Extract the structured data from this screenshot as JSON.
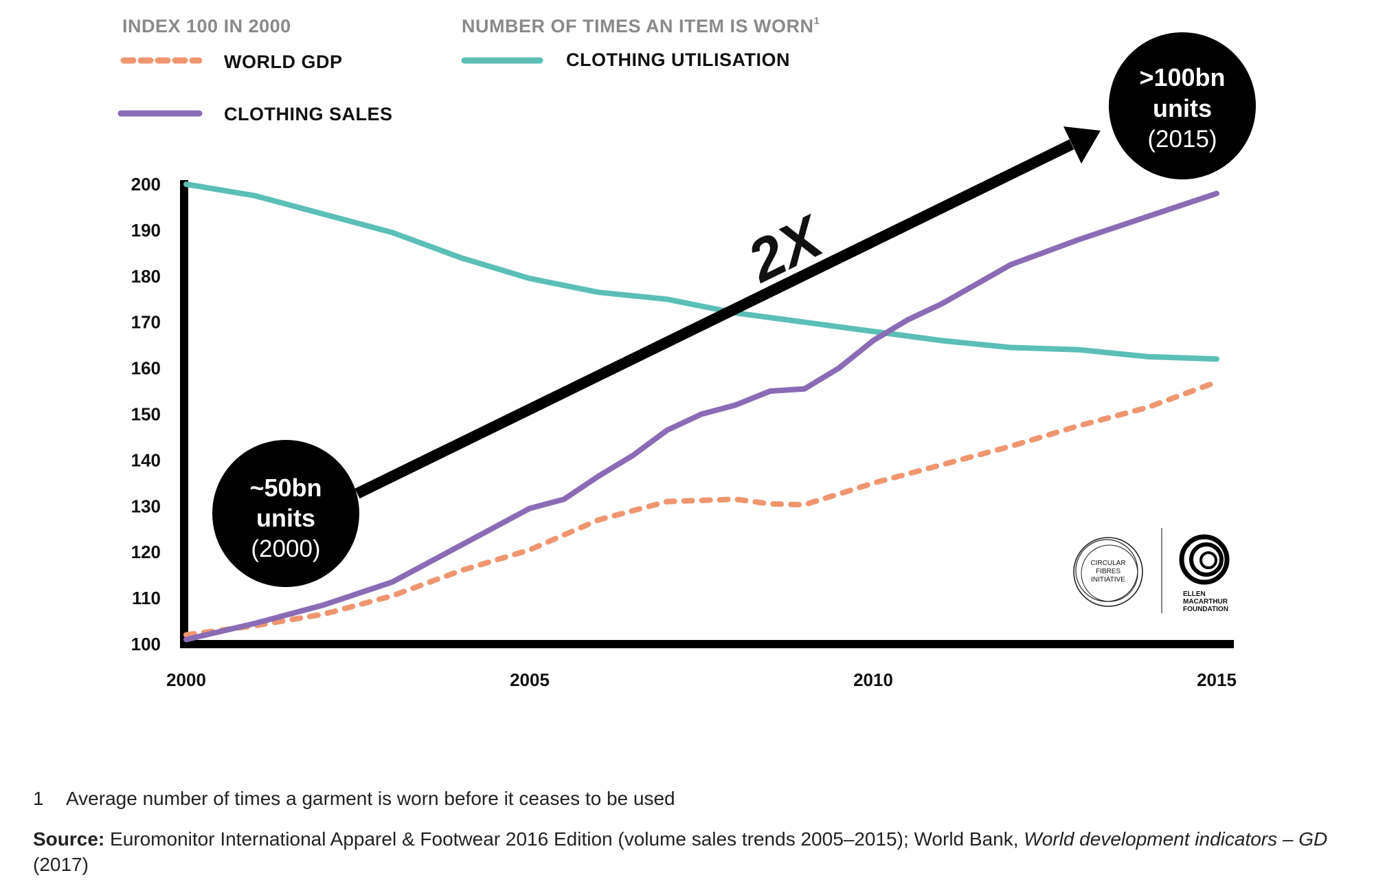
{
  "chart_data": {
    "type": "line",
    "x_range": [
      2000,
      2015
    ],
    "ylim": [
      100,
      200
    ],
    "x_ticks": [
      "2000",
      "2005",
      "2010",
      "2015"
    ],
    "y_ticks": [
      "100",
      "110",
      "120",
      "130",
      "140",
      "150",
      "160",
      "170",
      "180",
      "190",
      "200"
    ],
    "grid": false,
    "legend_position": "top-left",
    "legend_groups": [
      {
        "heading": "INDEX 100 IN 2000",
        "entries": [
          "WORLD GDP",
          "CLOTHING SALES"
        ]
      },
      {
        "heading": "NUMBER OF TIMES AN ITEM IS WORN",
        "heading_superscript": "1",
        "entries": [
          "CLOTHING UTILISATION"
        ]
      }
    ],
    "series": [
      {
        "name": "WORLD GDP",
        "style": "dashed",
        "color": "#ef9670",
        "x": [
          2000,
          2001,
          2002,
          2003,
          2004,
          2005,
          2006,
          2007,
          2008,
          2008.5,
          2009,
          2010,
          2011,
          2012,
          2013,
          2014,
          2015
        ],
        "y": [
          102,
          104,
          106.5,
          110.5,
          116,
          120.5,
          127,
          131,
          131.5,
          130.5,
          130.3,
          135,
          139,
          143,
          147.5,
          151.5,
          157
        ]
      },
      {
        "name": "CLOTHING SALES",
        "style": "solid",
        "color": "#8a6cb5",
        "x": [
          2000,
          2001,
          2002,
          2003,
          2004,
          2005,
          2005.5,
          2006,
          2006.5,
          2007,
          2007.5,
          2008,
          2008.5,
          2009,
          2009.5,
          2010,
          2010.5,
          2011,
          2012,
          2013,
          2014,
          2015
        ],
        "y": [
          101,
          104.5,
          108.5,
          113.5,
          121.5,
          129.5,
          131.5,
          136.5,
          141,
          146.5,
          150,
          152,
          155,
          155.5,
          160,
          166,
          170.5,
          174,
          182.5,
          188,
          193,
          198
        ]
      },
      {
        "name": "CLOTHING UTILISATION",
        "style": "solid",
        "color": "#5bbfb6",
        "x": [
          2000,
          2001,
          2002,
          2003,
          2004,
          2005,
          2006,
          2007,
          2008,
          2009,
          2010,
          2011,
          2012,
          2013,
          2014,
          2015
        ],
        "y": [
          200,
          197.5,
          193.5,
          189.5,
          184,
          179.5,
          176.5,
          175,
          172,
          170,
          168,
          166,
          164.5,
          164,
          162.5,
          162
        ]
      }
    ],
    "annotations": [
      {
        "id": "start",
        "line1": "~50bn",
        "line2": "units",
        "line3": "(2000)"
      },
      {
        "id": "end",
        "line1": ">100bn",
        "line2": "units",
        "line3": "(2015)"
      },
      {
        "id": "multiplier",
        "text": "2X"
      }
    ]
  },
  "logos": {
    "circular_fibres": [
      "CIRCULAR",
      "FIBRES",
      "INITIATIVE"
    ],
    "emf": [
      "ELLEN",
      "MACARTHUR",
      "FOUNDATION"
    ]
  },
  "footnote": {
    "number": "1",
    "text": "Average number of times a garment is worn before it ceases to be used"
  },
  "source": {
    "label": "Source:",
    "text": "Euromonitor International Apparel & Footwear 2016 Edition (volume sales trends 2005–2015); World Bank,",
    "italic": "World development indicators – GD",
    "tail": "(2017)"
  }
}
